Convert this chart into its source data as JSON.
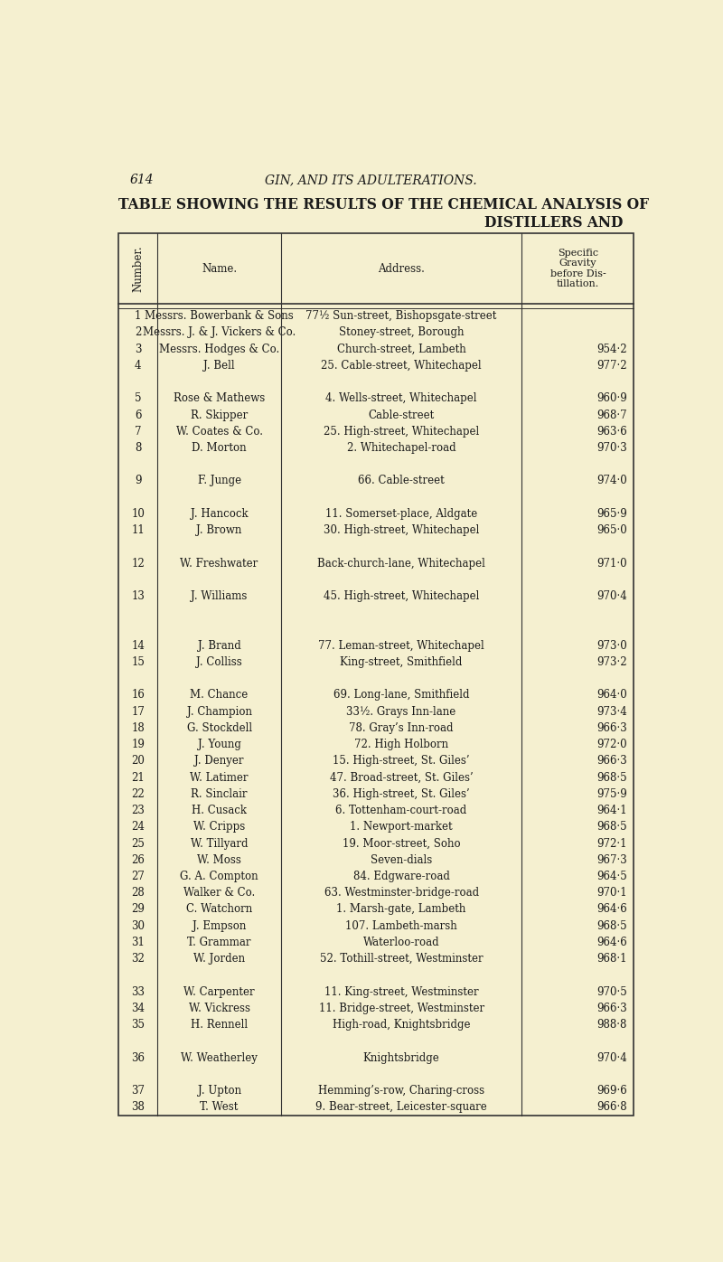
{
  "page_number": "614",
  "page_header": "GIN, AND ITS ADULTERATIONS.",
  "title_line1": "TABLE SHOWING THE RESULTS OF THE CHEMICAL ANALYSIS OF",
  "title_line2": "DISTILLERS AND",
  "col_headers": [
    "Number.",
    "Name.",
    "Address.",
    "Specific\nGravity\nbefore Dis-\ntillation."
  ],
  "rows": [
    [
      "1",
      "Messrs. Bowerbank & Sons",
      "77½ Sun-street, Bishopsgate-street",
      ""
    ],
    [
      "2",
      "Messrs. J. & J. Vickers & Co.",
      "Stoney-street, Borough",
      ""
    ],
    [
      "3",
      "Messrs. Hodges & Co.",
      "Church-street, Lambeth",
      "954·2"
    ],
    [
      "4",
      "J. Bell",
      "25. Cable-street, Whitechapel",
      "977·2"
    ],
    [
      "",
      "",
      "",
      ""
    ],
    [
      "5",
      "Rose & Mathews",
      "4. Wells-street, Whitechapel",
      "960·9"
    ],
    [
      "6",
      "R. Skipper",
      "Cable-street",
      "968·7"
    ],
    [
      "7",
      "W. Coates & Co.",
      "25. High-street, Whitechapel",
      "963·6"
    ],
    [
      "8",
      "D. Morton",
      "2. Whitechapel-road",
      "970·3"
    ],
    [
      "",
      "",
      "",
      ""
    ],
    [
      "9",
      "F. Junge",
      "66. Cable-street",
      "974·0"
    ],
    [
      "",
      "",
      "",
      ""
    ],
    [
      "10",
      "J. Hancock",
      "11. Somerset-place, Aldgate",
      "965·9"
    ],
    [
      "11",
      "J. Brown",
      "30. High-street, Whitechapel",
      "965·0"
    ],
    [
      "",
      "",
      "",
      ""
    ],
    [
      "12",
      "W. Freshwater",
      "Back-church-lane, Whitechapel",
      "971·0"
    ],
    [
      "",
      "",
      "",
      ""
    ],
    [
      "13",
      "J. Williams",
      "45. High-street, Whitechapel",
      "970·4"
    ],
    [
      "",
      "",
      "",
      ""
    ],
    [
      "",
      "",
      "",
      ""
    ],
    [
      "14",
      "J. Brand",
      "77. Leman-street, Whitechapel",
      "973·0"
    ],
    [
      "15",
      "J. Colliss",
      "King-street, Smithfield",
      "973·2"
    ],
    [
      "",
      "",
      "",
      ""
    ],
    [
      "16",
      "M. Chance",
      "69. Long-lane, Smithfield",
      "964·0"
    ],
    [
      "17",
      "J. Champion",
      "33½. Grays Inn-lane",
      "973·4"
    ],
    [
      "18",
      "G. Stockdell",
      "78. Gray’s Inn-road",
      "966·3"
    ],
    [
      "19",
      "J. Young",
      "72. High Holborn",
      "972·0"
    ],
    [
      "20",
      "J. Denyer",
      "15. High-street, St. Giles’",
      "966·3"
    ],
    [
      "21",
      "W. Latimer",
      "47. Broad-street, St. Giles’",
      "968·5"
    ],
    [
      "22",
      "R. Sinclair",
      "36. High-street, St. Giles’",
      "975·9"
    ],
    [
      "23",
      "H. Cusack",
      "6. Tottenham-court-road",
      "964·1"
    ],
    [
      "24",
      "W. Cripps",
      "1. Newport-market",
      "968·5"
    ],
    [
      "25",
      "W. Tillyard",
      "19. Moor-street, Soho",
      "972·1"
    ],
    [
      "26",
      "W. Moss",
      "Seven-dials",
      "967·3"
    ],
    [
      "27",
      "G. A. Compton",
      "84. Edgware-road",
      "964·5"
    ],
    [
      "28",
      "Walker & Co.",
      "63. Westminster-bridge-road",
      "970·1"
    ],
    [
      "29",
      "C. Watchorn",
      "1. Marsh-gate, Lambeth",
      "964·6"
    ],
    [
      "30",
      "J. Empson",
      "107. Lambeth-marsh",
      "968·5"
    ],
    [
      "31",
      "T. Grammar",
      "Waterloo-road",
      "964·6"
    ],
    [
      "32",
      "W. Jorden",
      "52. Tothill-street, Westminster",
      "968·1"
    ],
    [
      "",
      "",
      "",
      ""
    ],
    [
      "33",
      "W. Carpenter",
      "11. King-street, Westminster",
      "970·5"
    ],
    [
      "34",
      "W. Vickress",
      "11. Bridge-street, Westminster",
      "966·3"
    ],
    [
      "35",
      "H. Rennell",
      "High-road, Knightsbridge",
      "988·8"
    ],
    [
      "",
      "",
      "",
      ""
    ],
    [
      "36",
      "W. Weatherley",
      "Knightsbridge",
      "970·4"
    ],
    [
      "",
      "",
      "",
      ""
    ],
    [
      "37",
      "J. Upton",
      "Hemming’s-row, Charing-cross",
      "969·6"
    ],
    [
      "38",
      "T. West",
      "9. Bear-street, Leicester-square",
      "966·8"
    ]
  ],
  "bg_color": "#f5f0d0",
  "text_color": "#1a1a1a",
  "line_color": "#333333",
  "font_size": 8.5,
  "header_font_size": 8.5
}
